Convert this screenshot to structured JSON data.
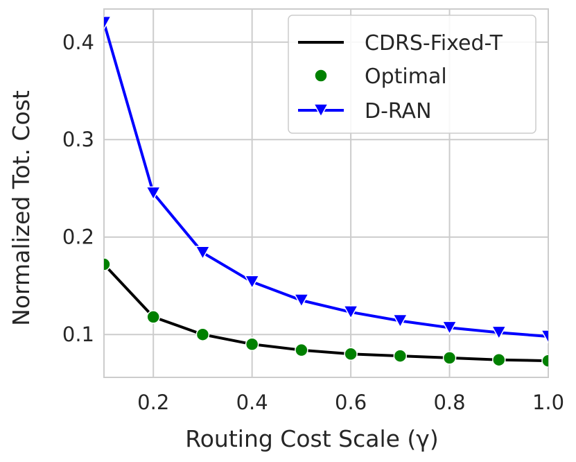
{
  "chart_data": {
    "type": "line",
    "title": "",
    "xlabel": "Routing Cost Scale (γ)",
    "ylabel": "Normalized Tot. Cost",
    "xlim": [
      0.1,
      1.0
    ],
    "ylim": [
      0.056,
      0.434
    ],
    "xticks": [
      0.2,
      0.4,
      0.6,
      0.8,
      1.0
    ],
    "xtick_labels": [
      "0.2",
      "0.4",
      "0.6",
      "0.8",
      "1.0"
    ],
    "yticks": [
      0.1,
      0.2,
      0.3,
      0.4
    ],
    "ytick_labels": [
      "0.1",
      "0.2",
      "0.3",
      "0.4"
    ],
    "grid": true,
    "legend_position": "top-right",
    "x": [
      0.1,
      0.2,
      0.3,
      0.4,
      0.5,
      0.6,
      0.7,
      0.8,
      0.9,
      1.0
    ],
    "series": [
      {
        "name": "CDRS-Fixed-T",
        "style": "line",
        "color": "#000000",
        "values": [
          0.172,
          0.118,
          0.1,
          0.09,
          0.084,
          0.08,
          0.078,
          0.076,
          0.074,
          0.073
        ]
      },
      {
        "name": "Optimal",
        "style": "markers",
        "marker": "circle",
        "color": "#008000",
        "values": [
          0.172,
          0.118,
          0.1,
          0.09,
          0.084,
          0.08,
          0.078,
          0.076,
          0.074,
          0.073
        ]
      },
      {
        "name": "D-RAN",
        "style": "line-markers",
        "marker": "triangle-down",
        "color": "#0000ff",
        "values": [
          0.42,
          0.245,
          0.184,
          0.154,
          0.135,
          0.123,
          0.114,
          0.107,
          0.102,
          0.098
        ]
      }
    ]
  }
}
